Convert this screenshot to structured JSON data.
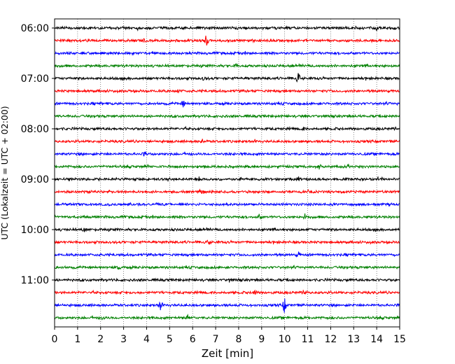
{
  "chart_data": {
    "type": "line",
    "title": "",
    "xlabel": "Zeit  [min]",
    "ylabel": "UTC (Lokalzeit = UTC + 02:00)",
    "xlim": [
      0,
      15
    ],
    "x_ticks": [
      "0",
      "1",
      "2",
      "3",
      "4",
      "5",
      "6",
      "7",
      "8",
      "9",
      "10",
      "11",
      "12",
      "13",
      "14",
      "15"
    ],
    "y_tick_labels": [
      "06:00",
      "07:00",
      "08:00",
      "09:00",
      "10:00",
      "11:00"
    ],
    "grid": "vertical dotted lines at each minute",
    "trace_colors": [
      "#000000",
      "#ff0000",
      "#0000ff",
      "#008000"
    ],
    "series": [
      {
        "start": "06:00",
        "color": "#000000",
        "events": [
          [
            14.0,
            3
          ]
        ]
      },
      {
        "start": "06:15",
        "color": "#ff0000",
        "events": [
          [
            6.6,
            9
          ],
          [
            3.9,
            3
          ]
        ]
      },
      {
        "start": "06:30",
        "color": "#0000ff",
        "events": []
      },
      {
        "start": "06:45",
        "color": "#008000",
        "events": [
          [
            7.9,
            3
          ]
        ]
      },
      {
        "start": "07:00",
        "color": "#000000",
        "events": [
          [
            10.6,
            8
          ],
          [
            6.5,
            3
          ]
        ]
      },
      {
        "start": "07:15",
        "color": "#ff0000",
        "events": [
          [
            5.4,
            3
          ]
        ]
      },
      {
        "start": "07:30",
        "color": "#0000ff",
        "events": [
          [
            5.6,
            5
          ]
        ]
      },
      {
        "start": "07:45",
        "color": "#008000",
        "events": []
      },
      {
        "start": "08:00",
        "color": "#000000",
        "events": [
          [
            10.8,
            3
          ]
        ]
      },
      {
        "start": "08:15",
        "color": "#ff0000",
        "events": [
          [
            6.4,
            4
          ]
        ]
      },
      {
        "start": "08:30",
        "color": "#0000ff",
        "events": [
          [
            3.9,
            3
          ]
        ]
      },
      {
        "start": "08:45",
        "color": "#008000",
        "events": [
          [
            11.5,
            4
          ]
        ]
      },
      {
        "start": "09:00",
        "color": "#000000",
        "events": [
          [
            6.3,
            4
          ],
          [
            10.6,
            3
          ]
        ]
      },
      {
        "start": "09:15",
        "color": "#ff0000",
        "events": [
          [
            6.4,
            3
          ]
        ]
      },
      {
        "start": "09:30",
        "color": "#0000ff",
        "events": []
      },
      {
        "start": "09:45",
        "color": "#008000",
        "events": [
          [
            8.9,
            4
          ],
          [
            10.9,
            5
          ]
        ]
      },
      {
        "start": "10:00",
        "color": "#000000",
        "events": [
          [
            1.3,
            3
          ]
        ]
      },
      {
        "start": "10:15",
        "color": "#ff0000",
        "events": [
          [
            6.7,
            4
          ]
        ]
      },
      {
        "start": "10:30",
        "color": "#0000ff",
        "events": [
          [
            10.6,
            4
          ]
        ]
      },
      {
        "start": "10:45",
        "color": "#008000",
        "events": [
          [
            2.8,
            3
          ]
        ]
      },
      {
        "start": "11:00",
        "color": "#000000",
        "events": [
          [
            7.6,
            3
          ]
        ]
      },
      {
        "start": "11:15",
        "color": "#ff0000",
        "events": [
          [
            10.9,
            5
          ],
          [
            8.7,
            4
          ]
        ]
      },
      {
        "start": "11:30",
        "color": "#0000ff",
        "events": [
          [
            4.6,
            7
          ],
          [
            10.0,
            12
          ]
        ]
      },
      {
        "start": "11:45",
        "color": "#008000",
        "events": [
          [
            5.8,
            7
          ],
          [
            2.1,
            3
          ]
        ]
      }
    ]
  }
}
